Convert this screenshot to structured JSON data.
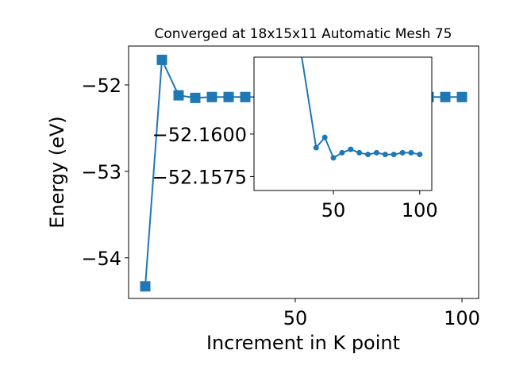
{
  "chart_data": [
    {
      "type": "line",
      "title": "Converged at 18x15x11 Automatic Mesh 75",
      "xlabel": "Increment in K point",
      "ylabel": "Energy (eV)",
      "xlim": [
        0,
        105
      ],
      "ylim": [
        -54.47,
        -51.55
      ],
      "xticks": [
        50,
        100
      ],
      "xtick_labels": [
        "50",
        "100"
      ],
      "yticks": [
        -54,
        -53,
        -52
      ],
      "ytick_labels": [
        "−54",
        "−53",
        "−52"
      ],
      "marker": "square",
      "color": "#1f77b4",
      "grid": false,
      "series": [
        {
          "x": [
            5,
            10,
            15,
            20,
            25,
            30,
            35,
            40,
            45,
            50,
            55,
            60,
            65,
            70,
            75,
            80,
            85,
            90,
            95,
            100
          ],
          "y": [
            -54.33,
            -51.71,
            -52.12,
            -52.15,
            -52.14,
            -52.14,
            -52.14,
            -52.14,
            -52.14,
            -52.14,
            -52.14,
            -52.14,
            -52.14,
            -52.14,
            -52.14,
            -52.14,
            -52.14,
            -52.14,
            -52.14,
            -52.14
          ]
        }
      ]
    },
    {
      "type": "line",
      "title": "",
      "xlabel": "",
      "ylabel": "",
      "xlim": [
        4,
        107
      ],
      "ylim": [
        -52.15668,
        -52.16452
      ],
      "xticks": [
        50,
        100
      ],
      "xtick_labels": [
        "50",
        "100"
      ],
      "yticks": [
        -52.1575,
        -52.16
      ],
      "ytick_labels": [
        "−52.1575",
        "−52.1600"
      ],
      "marker": "circle",
      "color": "#1f77b4",
      "grid": false,
      "series": [
        {
          "x": [
            30,
            40,
            45,
            50,
            55,
            60,
            65,
            70,
            75,
            80,
            85,
            90,
            95,
            100
          ],
          "y": [
            -52.1656,
            -52.1592,
            -52.1598,
            -52.1586,
            -52.1589,
            -52.1591,
            -52.1589,
            -52.1588,
            -52.1589,
            -52.1588,
            -52.1588,
            -52.1589,
            -52.1589,
            -52.1588
          ]
        }
      ]
    }
  ]
}
